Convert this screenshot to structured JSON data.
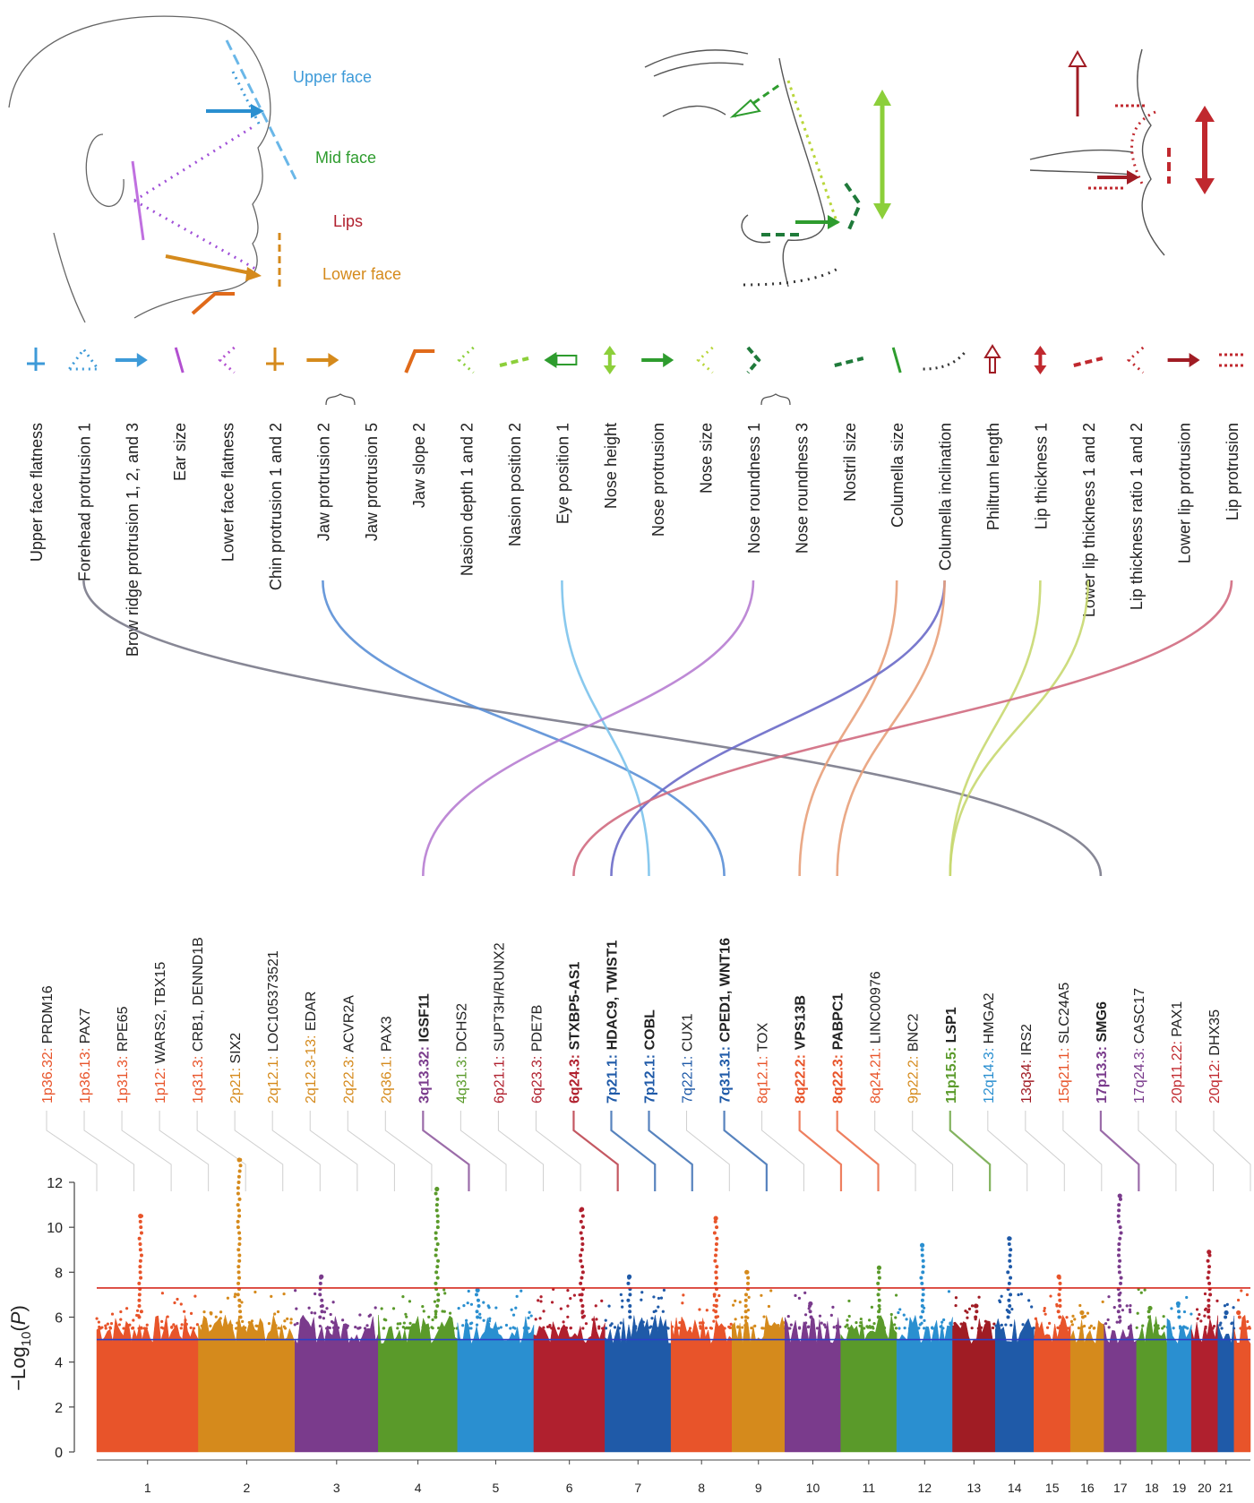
{
  "regions": [
    {
      "label": "Upper face",
      "color": "#3d9ad8"
    },
    {
      "label": "Mid face",
      "color": "#2e9c2e"
    },
    {
      "label": "Lips",
      "color": "#b0202e"
    },
    {
      "label": "Lower face",
      "color": "#d58a1c"
    }
  ],
  "phenotypes": [
    {
      "label": "Upper face flatness",
      "color": "#3d9ad8",
      "icon": "bracket-icon"
    },
    {
      "label": "Forehead protrusion 1",
      "color": "#3d9ad8",
      "icon": "dotted-triangle-icon"
    },
    {
      "label": "Brow ridge protrusion 1, 2, and 3",
      "color": "#3d9ad8",
      "icon": "arrow-right-icon"
    },
    {
      "label": "Ear size",
      "color": "#b24fd0",
      "icon": "slash-icon"
    },
    {
      "label": "Lower face flatness",
      "color": "#b24fd0",
      "icon": "dotted-angle-icon"
    },
    {
      "label": "Chin protrusion 1 and 2",
      "color": "#d58a1c",
      "icon": "bracket-icon"
    },
    {
      "label": "Jaw protrusion 2",
      "color": "#d58a1c",
      "icon": "arrow-right-icon"
    },
    {
      "label": "Jaw protrusion 5",
      "color": "#d58a1c",
      "icon": ""
    },
    {
      "label": "Jaw slope 2",
      "color": "#e06a1a",
      "icon": "angle-icon"
    },
    {
      "label": "Nasion depth 1 and 2",
      "color": "#8ccf3a",
      "icon": "dotted-angle-icon"
    },
    {
      "label": "Nasion position 2",
      "color": "#8ccf3a",
      "icon": "dash-icon"
    },
    {
      "label": "Eye position 1",
      "color": "#2e9c2e",
      "icon": "arrow-left-icon"
    },
    {
      "label": "Nose height",
      "color": "#8ccf3a",
      "icon": "double-arrow-icon"
    },
    {
      "label": "Nose protrusion",
      "color": "#2e9c2e",
      "icon": "arrow-right-icon"
    },
    {
      "label": "Nose size",
      "color": "#b9d63a",
      "icon": "dotted-angle-icon"
    },
    {
      "label": "Nose roundness 1",
      "color": "#1f7a3a",
      "icon": "chevron-icon"
    },
    {
      "label": "Nose roundness 3",
      "color": "#1f7a3a",
      "icon": ""
    },
    {
      "label": "Nostril size",
      "color": "#1f7a3a",
      "icon": "dash-icon"
    },
    {
      "label": "Columella size",
      "color": "#2e9c2e",
      "icon": "slash-icon"
    },
    {
      "label": "Columella inclination",
      "color": "#333333",
      "icon": "dotted-curve-icon"
    },
    {
      "label": "Philtrum length",
      "color": "#a01c24",
      "icon": "arrow-up-icon"
    },
    {
      "label": "Lip thickness 1",
      "color": "#c0282e",
      "icon": "double-arrow-icon"
    },
    {
      "label": "Lower lip thickness 1 and 2",
      "color": "#c0282e",
      "icon": "dash-icon"
    },
    {
      "label": "Lip thickness ratio 1 and 2",
      "color": "#c0282e",
      "icon": "dotted-angle-icon"
    },
    {
      "label": "Lower lip protrusion",
      "color": "#a01c24",
      "icon": "arrow-right-icon"
    },
    {
      "label": "Lip protrusion",
      "color": "#c0282e",
      "icon": "dotted-lines-icon"
    }
  ],
  "loci": [
    {
      "band": "1p36.32",
      "gene": "PRDM16",
      "color": "#e8542a",
      "bold": false
    },
    {
      "band": "1p36.13",
      "gene": "PAX7",
      "color": "#e8542a",
      "bold": false
    },
    {
      "band": "1p31.3",
      "gene": "RPE65",
      "color": "#e8542a",
      "bold": false
    },
    {
      "band": "1p12",
      "gene": "WARS2, TBX15",
      "color": "#e8542a",
      "bold": false
    },
    {
      "band": "1q31.3",
      "gene": "CRB1, DENND1B",
      "color": "#e8542a",
      "bold": false
    },
    {
      "band": "2p21",
      "gene": "SIX2",
      "color": "#d58a1c",
      "bold": false
    },
    {
      "band": "2q12.1",
      "gene": "LOC105373521",
      "color": "#d58a1c",
      "bold": false
    },
    {
      "band": "2q12.3-13",
      "gene": "EDAR",
      "color": "#d58a1c",
      "bold": false
    },
    {
      "band": "2q22.3",
      "gene": "ACVR2A",
      "color": "#d58a1c",
      "bold": false
    },
    {
      "band": "2q36.1",
      "gene": "PAX3",
      "color": "#d58a1c",
      "bold": false
    },
    {
      "band": "3q13.32",
      "gene": "IGSF11",
      "color": "#7a3b8c",
      "bold": true
    },
    {
      "band": "4q31.3",
      "gene": "DCHS2",
      "color": "#5a9a2a",
      "bold": false
    },
    {
      "band": "6p21.1",
      "gene": "SUPT3H/RUNX2",
      "color": "#b0202e",
      "bold": false
    },
    {
      "band": "6q23.3",
      "gene": "PDE7B",
      "color": "#b0202e",
      "bold": false
    },
    {
      "band": "6q24.3",
      "gene": "STXBP5-AS1",
      "color": "#b0202e",
      "bold": true
    },
    {
      "band": "7p21.1",
      "gene": "HDAC9, TWIST1",
      "color": "#1f5aa8",
      "bold": true
    },
    {
      "band": "7p12.1",
      "gene": "COBL",
      "color": "#1f5aa8",
      "bold": true
    },
    {
      "band": "7q22.1",
      "gene": "CUX1",
      "color": "#1f5aa8",
      "bold": false
    },
    {
      "band": "7q31.31",
      "gene": "CPED1, WNT16",
      "color": "#1f5aa8",
      "bold": true
    },
    {
      "band": "8q12.1",
      "gene": "TOX",
      "color": "#e8542a",
      "bold": false
    },
    {
      "band": "8q22.2",
      "gene": "VPS13B",
      "color": "#e8542a",
      "bold": true
    },
    {
      "band": "8q22.3",
      "gene": "PABPC1",
      "color": "#e8542a",
      "bold": true
    },
    {
      "band": "8q24.21",
      "gene": "LINC00976",
      "color": "#e8542a",
      "bold": false
    },
    {
      "band": "9p22.2",
      "gene": "BNC2",
      "color": "#d58a1c",
      "bold": false
    },
    {
      "band": "11p15.5",
      "gene": "LSP1",
      "color": "#5a9a2a",
      "bold": true
    },
    {
      "band": "12q14.3",
      "gene": "HMGA2",
      "color": "#2a8fd0",
      "bold": false
    },
    {
      "band": "13q34",
      "gene": "IRS2",
      "color": "#a01c24",
      "bold": false
    },
    {
      "band": "15q21.1",
      "gene": "SLC24A5",
      "color": "#e8542a",
      "bold": false
    },
    {
      "band": "17p13.3",
      "gene": "SMG6",
      "color": "#7a3b8c",
      "bold": true
    },
    {
      "band": "17q24.3",
      "gene": "CASC17",
      "color": "#7a3b8c",
      "bold": false
    },
    {
      "band": "20p11.22",
      "gene": "PAX1",
      "color": "#c0282e",
      "bold": false
    },
    {
      "band": "20q12",
      "gene": "DHX35",
      "color": "#c0282e",
      "bold": false
    }
  ],
  "chart_data": {
    "type": "scatter",
    "subtype": "manhattan",
    "ylabel": "−Log10(P)",
    "ylabel_base": "−Log",
    "ylabel_sub": "10",
    "ylabel_rest": "(P)",
    "ylim": [
      0,
      13
    ],
    "yticks": [
      "0",
      "2",
      "4",
      "6",
      "8",
      "10",
      "12"
    ],
    "genome_wide_threshold": 7.3,
    "suggestive_threshold": 5.0,
    "chromosomes": [
      {
        "name": "1",
        "color": "#e8542a",
        "peak": 10.5
      },
      {
        "name": "2",
        "color": "#d58a1c",
        "peak": 13.0
      },
      {
        "name": "3",
        "color": "#7a3b8c",
        "peak": 7.8
      },
      {
        "name": "4",
        "color": "#5a9a2a",
        "peak": 11.7
      },
      {
        "name": "5",
        "color": "#2a8fd0",
        "peak": 7.2
      },
      {
        "name": "6",
        "color": "#b0202e",
        "peak": 10.8
      },
      {
        "name": "7",
        "color": "#1f5aa8",
        "peak": 7.8
      },
      {
        "name": "8",
        "color": "#e8542a",
        "peak": 10.4
      },
      {
        "name": "9",
        "color": "#d58a1c",
        "peak": 8.0
      },
      {
        "name": "10",
        "color": "#7a3b8c",
        "peak": 6.6
      },
      {
        "name": "11",
        "color": "#5a9a2a",
        "peak": 8.2
      },
      {
        "name": "12",
        "color": "#2a8fd0",
        "peak": 9.2
      },
      {
        "name": "13",
        "color": "#a01c24",
        "peak": 6.5
      },
      {
        "name": "14",
        "color": "#1f5aa8",
        "peak": 9.5
      },
      {
        "name": "15",
        "color": "#e8542a",
        "peak": 7.8
      },
      {
        "name": "16",
        "color": "#d58a1c",
        "peak": 6.2
      },
      {
        "name": "17",
        "color": "#7a3b8c",
        "peak": 11.4
      },
      {
        "name": "18",
        "color": "#5a9a2a",
        "peak": 6.4
      },
      {
        "name": "19",
        "color": "#2a8fd0",
        "peak": 6.6
      },
      {
        "name": "20",
        "color": "#b0202e",
        "peak": 8.9
      },
      {
        "name": "21",
        "color": "#1f5aa8",
        "peak": 6.2
      },
      {
        "name": "",
        "color": "#e8542a",
        "peak": 6.2
      }
    ]
  },
  "links": [
    {
      "phenotype": "Forehead protrusion 1",
      "locus": "SMG6",
      "color": "#7a7a8a"
    },
    {
      "phenotype": "Jaw protrusion 2",
      "locus": "CPED1, WNT16",
      "color": "#5a8fd6"
    },
    {
      "phenotype": "Eye position 1",
      "locus": "COBL",
      "color": "#7cc3ec"
    },
    {
      "phenotype": "Nose roundness 1",
      "locus": "IGSF11",
      "color": "#b77dd2"
    },
    {
      "phenotype": "Columella size",
      "locus": "VPS13B",
      "color": "#e8a07a"
    },
    {
      "phenotype": "Columella inclination",
      "locus": "HDAC9, TWIST1",
      "color": "#6a6ac8"
    },
    {
      "phenotype": "Columella inclination",
      "locus": "PABPC1",
      "color": "#e8a07a"
    },
    {
      "phenotype": "Lip thickness 1",
      "locus": "LSP1",
      "color": "#c8d870"
    },
    {
      "phenotype": "Lower lip thickness 1 and 2",
      "locus": "LSP1",
      "color": "#c8d870"
    },
    {
      "phenotype": "Lip protrusion",
      "locus": "STXBP5-AS1",
      "color": "#d06a80"
    }
  ]
}
